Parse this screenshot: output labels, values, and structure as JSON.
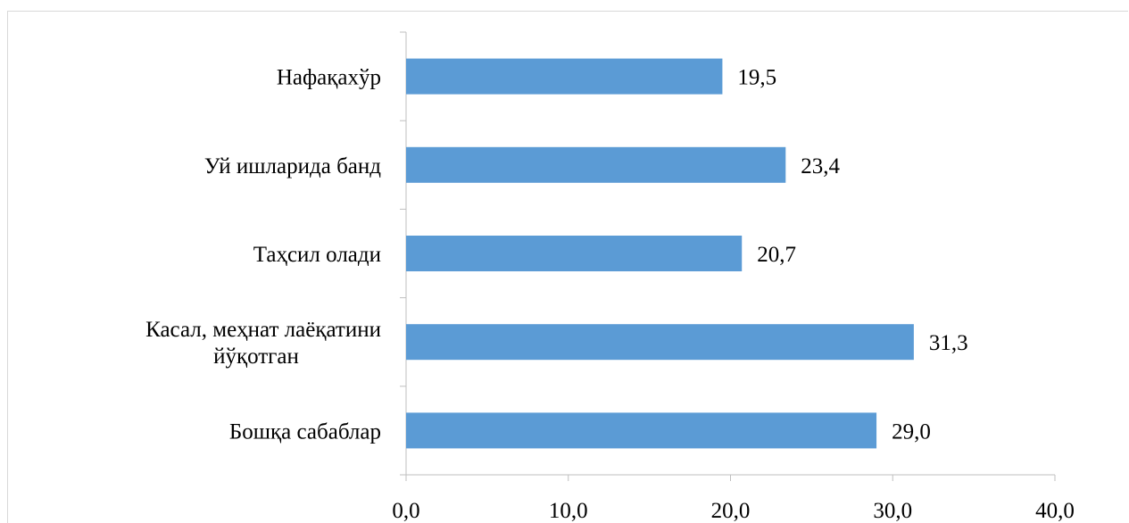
{
  "chart_data": {
    "type": "bar",
    "orientation": "horizontal",
    "categories": [
      [
        "Нафақахўр"
      ],
      [
        "Уй ишларида банд"
      ],
      [
        "Таҳсил олади"
      ],
      [
        "Касал, меҳнат лаёқатини",
        "йўқотган"
      ],
      [
        "Бошқа сабаблар"
      ]
    ],
    "values": [
      19.5,
      23.4,
      20.7,
      31.3,
      29.0
    ],
    "value_labels": [
      "19,5",
      "23,4",
      "20,7",
      "31,3",
      "29,0"
    ],
    "xlim": [
      0,
      40
    ],
    "x_ticks": [
      0,
      10,
      20,
      30,
      40
    ],
    "x_tick_labels": [
      "0,0",
      "10,0",
      "20,0",
      "30,0",
      "40,0"
    ],
    "grid": false,
    "legend": "none",
    "bar_color": "#5b9bd5"
  }
}
